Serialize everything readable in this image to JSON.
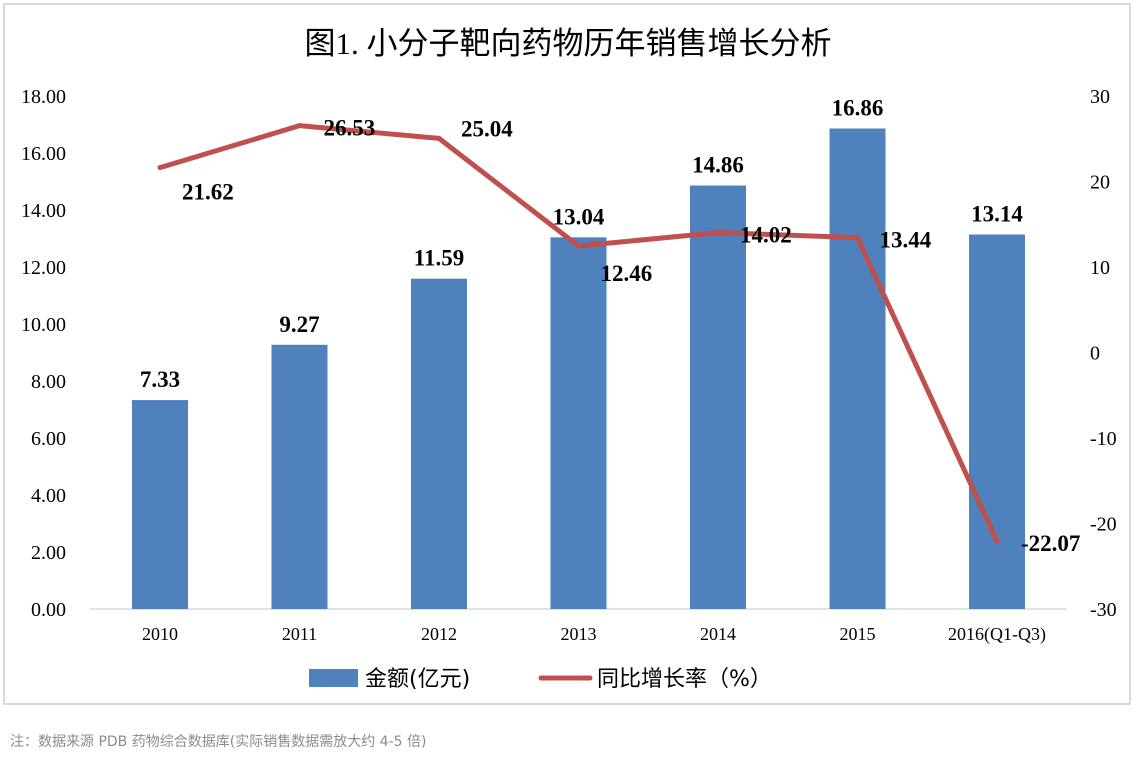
{
  "chart_data": {
    "type": "bar+line",
    "title": "图1. 小分子靶向药物历年销售增长分析",
    "categories": [
      "2010",
      "2011",
      "2012",
      "2013",
      "2014",
      "2015",
      "2016(Q1-Q3)"
    ],
    "series": [
      {
        "name": "金额(亿元)",
        "type": "bar",
        "axis": "left",
        "color": "#4f81bd",
        "values": [
          7.33,
          9.27,
          11.59,
          13.04,
          14.86,
          16.86,
          13.14
        ],
        "labels": [
          "7.33",
          "9.27",
          "11.59",
          "13.04",
          "14.86",
          "16.86",
          "13.14"
        ]
      },
      {
        "name": "同比增长率（%）",
        "type": "line",
        "axis": "right",
        "color": "#c0504d",
        "values": [
          21.62,
          26.53,
          25.04,
          12.46,
          14.02,
          13.44,
          -22.07
        ],
        "labels": [
          "21.62",
          "26.53",
          "25.04",
          "12.46",
          "14.02",
          "13.44",
          "-22.07"
        ]
      }
    ],
    "y_left": {
      "range": [
        0,
        18
      ],
      "ticks": [
        "0.00",
        "2.00",
        "4.00",
        "6.00",
        "8.00",
        "10.00",
        "12.00",
        "14.00",
        "16.00",
        "18.00"
      ]
    },
    "y_right": {
      "range": [
        -30,
        30
      ],
      "ticks": [
        "-30",
        "-20",
        "-10",
        "0",
        "10",
        "20",
        "30"
      ]
    },
    "grid": false,
    "legend": "bottom"
  },
  "note": "注：数据来源 PDB 药物综合数据库(实际销售数据需放大约 4-5 倍)"
}
